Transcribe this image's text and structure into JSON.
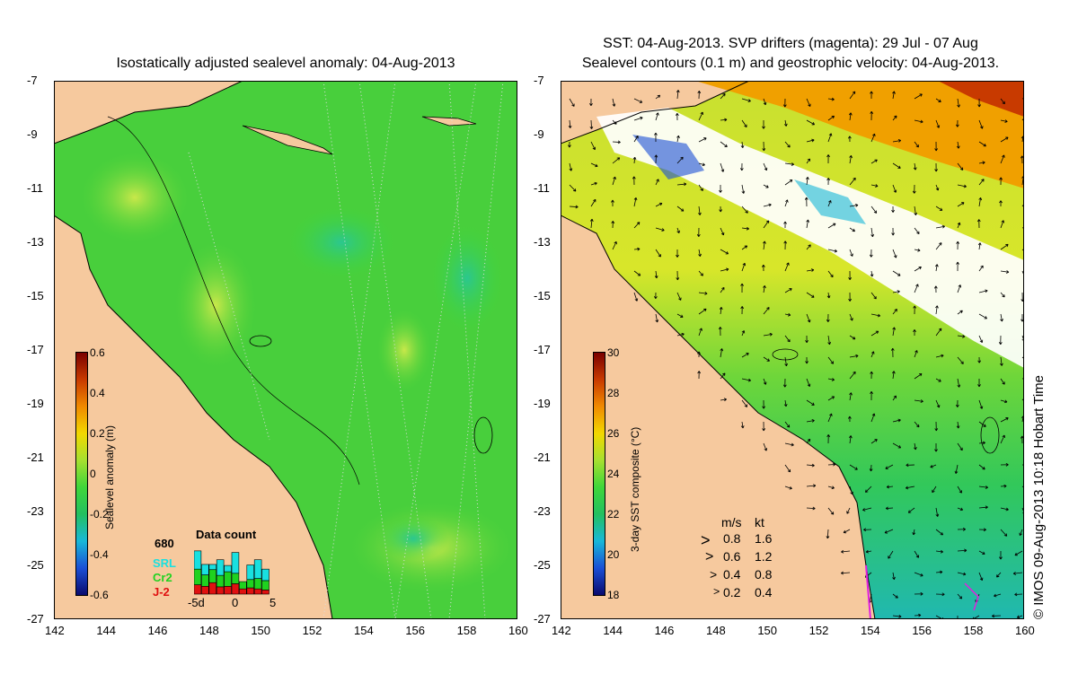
{
  "left_panel": {
    "title": "Isostatically adjusted sealevel anomaly: 04-Aug-2013",
    "colorbar": {
      "label": "Sealevel anomaly (m)",
      "ticks": [
        "0.6",
        "0.4",
        "0.2",
        "0",
        "-0.2",
        "-0.4",
        "-0.6"
      ],
      "colors": [
        "#0a0a6e",
        "#1a4fd6",
        "#18b8d8",
        "#23c060",
        "#3fd63a",
        "#a6e030",
        "#f2d800",
        "#f08a00",
        "#c83a00",
        "#7a0000"
      ]
    },
    "data_count": {
      "title": "Data count",
      "max_label": "680",
      "series": [
        {
          "name": "SRL",
          "color": "#18e0e0"
        },
        {
          "name": "Cr2",
          "color": "#1fd21f"
        },
        {
          "name": "J-2",
          "color": "#e01010"
        }
      ],
      "x_ticks": [
        "-5d",
        "0",
        "5"
      ],
      "bars": [
        {
          "srl": 0.35,
          "cr2": 0.3,
          "j2": 0.18
        },
        {
          "srl": 0.2,
          "cr2": 0.22,
          "j2": 0.15
        },
        {
          "srl": 0.1,
          "cr2": 0.25,
          "j2": 0.22
        },
        {
          "srl": 0.3,
          "cr2": 0.22,
          "j2": 0.14
        },
        {
          "srl": 0.12,
          "cr2": 0.28,
          "j2": 0.15
        },
        {
          "srl": 0.4,
          "cr2": 0.2,
          "j2": 0.2
        },
        {
          "srl": 0.0,
          "cr2": 0.14,
          "j2": 0.1
        },
        {
          "srl": 0.28,
          "cr2": 0.16,
          "j2": 0.12
        },
        {
          "srl": 0.36,
          "cr2": 0.2,
          "j2": 0.1
        },
        {
          "srl": 0.22,
          "cr2": 0.18,
          "j2": 0.08
        }
      ]
    }
  },
  "right_panel": {
    "title_line1": "SST: 04-Aug-2013. SVP drifters (magenta): 29 Jul - 07 Aug",
    "title_line2": "Sealevel contours (0.1 m) and geostrophic velocity: 04-Aug-2013.",
    "colorbar": {
      "label": "3-day SST composite (°C)",
      "ticks": [
        "30",
        "28",
        "26",
        "24",
        "22",
        "20",
        "18"
      ],
      "colors": [
        "#0a0a6e",
        "#1a4fd6",
        "#18b8d8",
        "#23c060",
        "#3fd63a",
        "#a6e030",
        "#f2d800",
        "#f08a00",
        "#c83a00",
        "#7a0000"
      ]
    },
    "velocity_legend": {
      "header_ms": "m/s",
      "header_kt": "kt",
      "rows": [
        {
          "ms": "0.8",
          "kt": "1.6"
        },
        {
          "ms": "0.6",
          "kt": "1.2"
        },
        {
          "ms": "0.4",
          "kt": "0.8"
        },
        {
          "ms": "0.2",
          "kt": "0.4"
        }
      ]
    }
  },
  "axes": {
    "x_ticks": [
      "142",
      "144",
      "146",
      "148",
      "150",
      "152",
      "154",
      "156",
      "158",
      "160"
    ],
    "y_ticks": [
      "-7",
      "-9",
      "-11",
      "-13",
      "-15",
      "-17",
      "-19",
      "-21",
      "-23",
      "-25",
      "-27"
    ],
    "lon_range": [
      142,
      160
    ],
    "lat_range": [
      -27,
      -7
    ]
  },
  "copyright": "© IMOS 09-Aug-2013 10:18 Hobart Time",
  "colors": {
    "land": "#f6c99e",
    "ocean_green": "#3fd63a",
    "white_cloud": "#ffffff",
    "warm_orange": "#f08a00"
  }
}
